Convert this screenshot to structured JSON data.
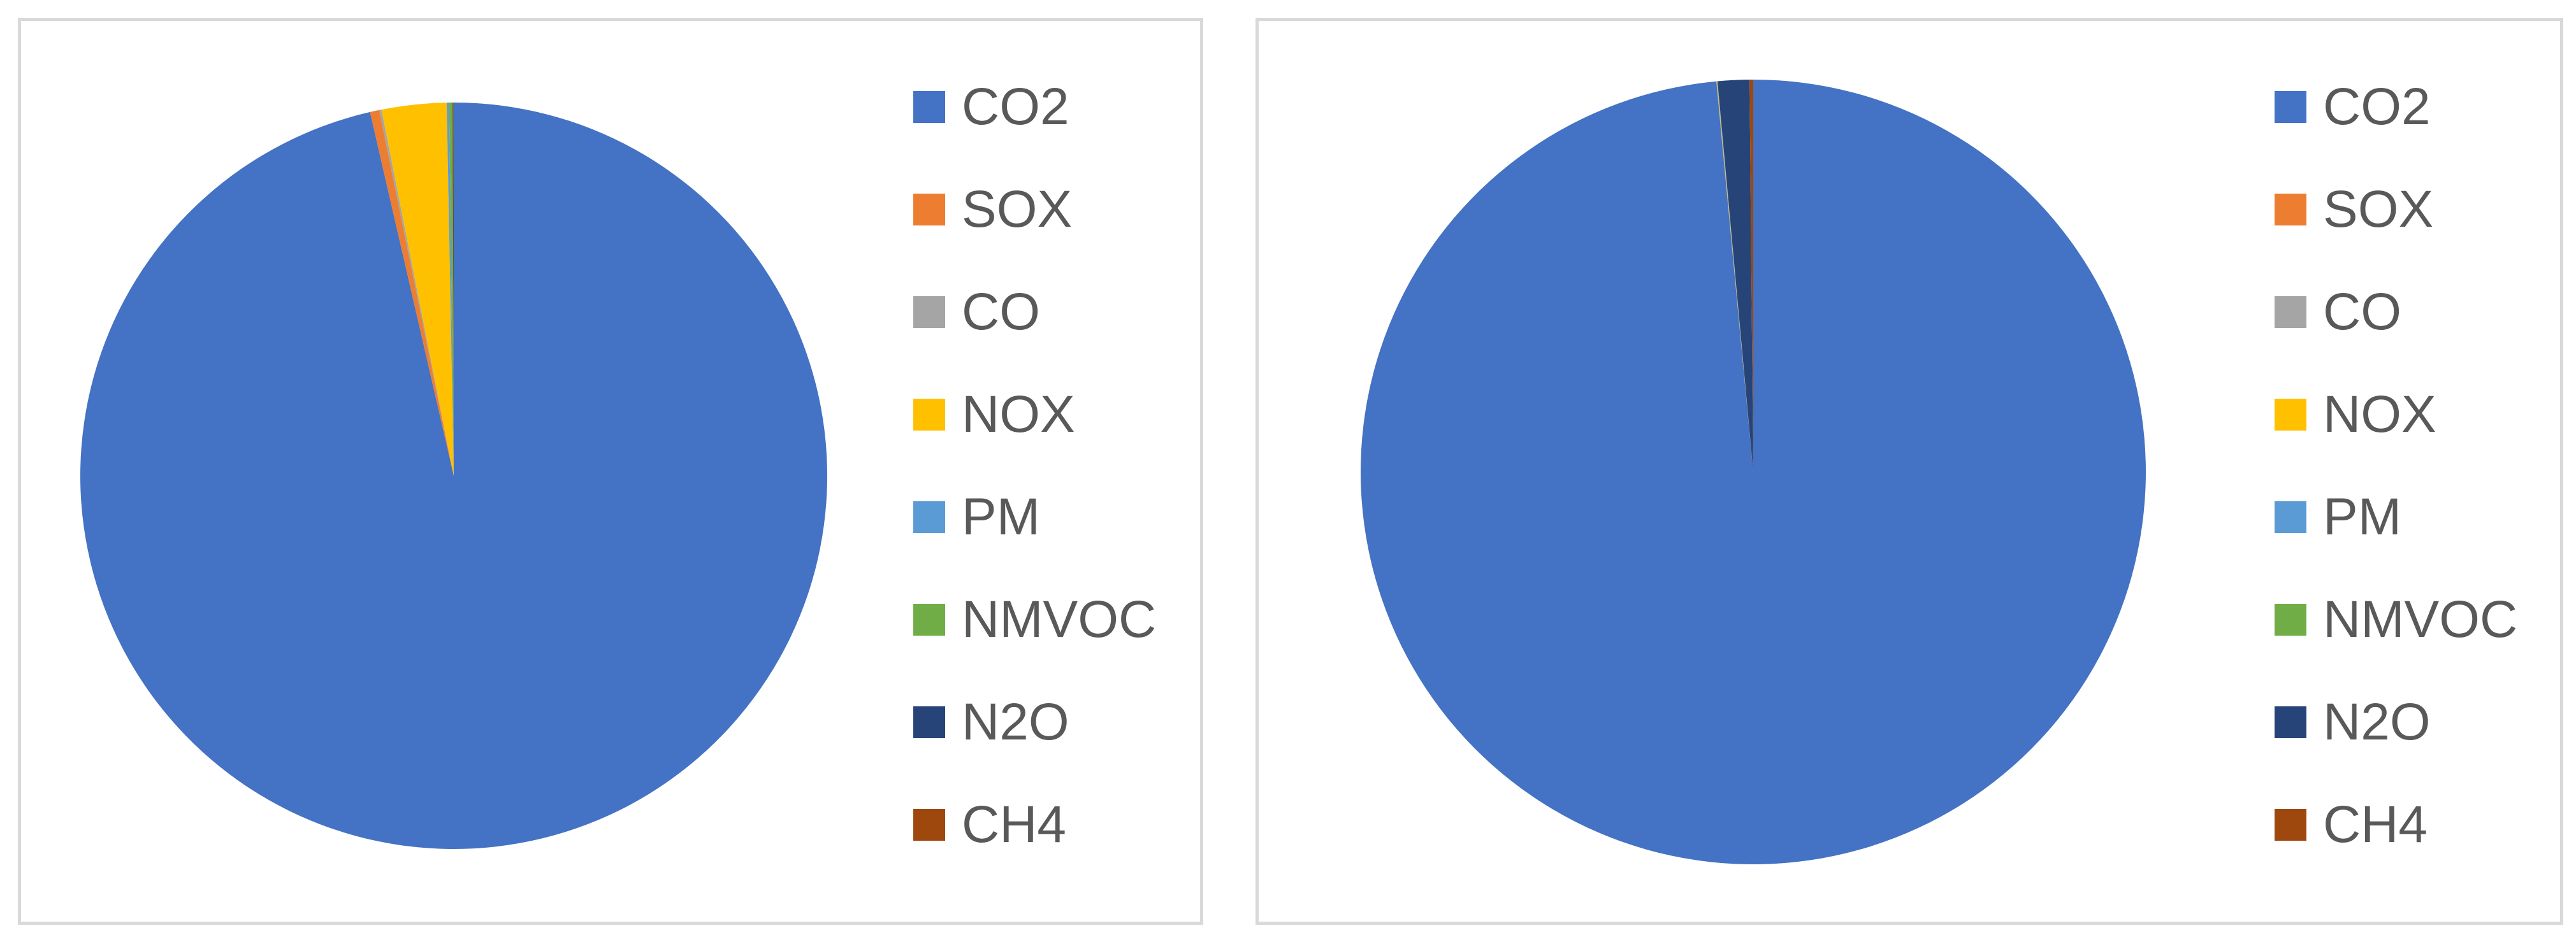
{
  "chart_data": [
    {
      "type": "pie",
      "title": "",
      "legend_position": "right",
      "slices": [
        {
          "label": "CO2",
          "value": 96.4,
          "color": "#4472C4"
        },
        {
          "label": "SOX",
          "value": 0.4,
          "color": "#ED7D31"
        },
        {
          "label": "CO",
          "value": 0.1,
          "color": "#A5A5A5"
        },
        {
          "label": "NOX",
          "value": 2.8,
          "color": "#FFC000"
        },
        {
          "label": "PM",
          "value": 0.1,
          "color": "#5B9BD5"
        },
        {
          "label": "NMVOC",
          "value": 0.15,
          "color": "#70AD47"
        },
        {
          "label": "N2O",
          "value": 0.03,
          "color": "#264478"
        },
        {
          "label": "CH4",
          "value": 0.02,
          "color": "#9E480E"
        }
      ]
    },
    {
      "type": "pie",
      "title": "",
      "legend_position": "right",
      "slices": [
        {
          "label": "CO2",
          "value": 98.5,
          "color": "#4472C4"
        },
        {
          "label": "SOX",
          "value": 0.01,
          "color": "#ED7D31"
        },
        {
          "label": "CO",
          "value": 0.01,
          "color": "#A5A5A5"
        },
        {
          "label": "NOX",
          "value": 0.01,
          "color": "#FFC000"
        },
        {
          "label": "PM",
          "value": 0.01,
          "color": "#5B9BD5"
        },
        {
          "label": "NMVOC",
          "value": 0.01,
          "color": "#70AD47"
        },
        {
          "label": "N2O",
          "value": 1.3,
          "color": "#264478"
        },
        {
          "label": "CH4",
          "value": 0.15,
          "color": "#9E480E"
        }
      ]
    }
  ]
}
